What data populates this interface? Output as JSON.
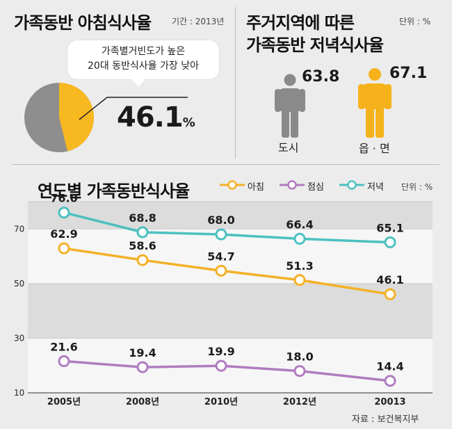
{
  "breakfast": {
    "title": "가족동반 아침식사율",
    "period": "기간 : 2013년",
    "callout_line1": "가족별거빈도가 높은",
    "callout_line2": "20대 동반식사율 가장 낮아",
    "value": "46.1",
    "unit": "%",
    "pie_value": 46.1,
    "colors": {
      "share": "#f8b820",
      "rest": "#8e8e8e"
    }
  },
  "dinner": {
    "title_line1": "주거지역에 따른",
    "title_line2": "가족동반 저녁식사율",
    "unit": "단위 : %",
    "city": {
      "value": "63.8",
      "label": "도시",
      "color": "#8a8a8a",
      "icon": "person-icon"
    },
    "rural": {
      "value": "67.1",
      "label": "읍 · 면",
      "color": "#f6b21b",
      "icon": "person-icon"
    }
  },
  "trend": {
    "title": "연도별 가족동반식사율",
    "unit": "단위 : %",
    "legend": [
      "아침",
      "점심",
      "저녁"
    ]
  },
  "source": "자료 : 보건복지부",
  "chart_data": {
    "type": "line",
    "title": "연도별 가족동반식사율",
    "x": [
      "2005년",
      "2008년",
      "2010년",
      "2012년",
      "20013"
    ],
    "series": [
      {
        "name": "아침",
        "values": [
          62.9,
          58.6,
          54.7,
          51.3,
          46.1
        ],
        "color": "#f4b027"
      },
      {
        "name": "점심",
        "values": [
          21.6,
          19.4,
          19.9,
          18.0,
          14.4
        ],
        "color": "#b07cc0"
      },
      {
        "name": "저녁",
        "values": [
          76.0,
          68.8,
          68.0,
          66.4,
          65.1
        ],
        "color": "#4cc0c0"
      }
    ],
    "yticks": [
      10,
      30,
      50,
      70
    ],
    "ylim": [
      10,
      80
    ],
    "grid": "alternating bands",
    "legend": "top-right"
  }
}
